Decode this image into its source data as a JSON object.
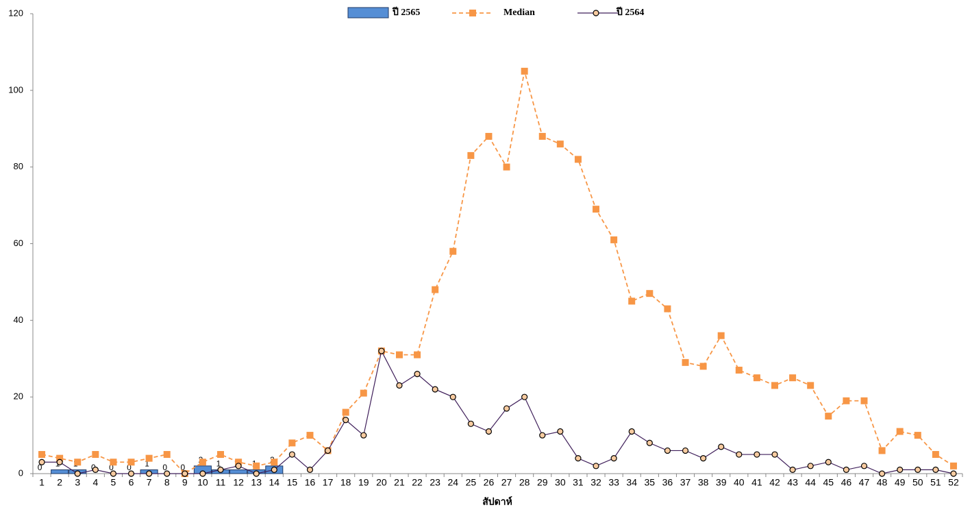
{
  "chart_data": {
    "type": "combo",
    "x_label": "สัปดาห์",
    "categories": [
      "1",
      "2",
      "3",
      "4",
      "5",
      "6",
      "7",
      "8",
      "9",
      "10",
      "11",
      "12",
      "13",
      "14",
      "15",
      "16",
      "17",
      "18",
      "19",
      "20",
      "21",
      "22",
      "23",
      "24",
      "25",
      "26",
      "27",
      "28",
      "29",
      "30",
      "31",
      "32",
      "33",
      "34",
      "35",
      "36",
      "37",
      "38",
      "39",
      "40",
      "41",
      "42",
      "43",
      "44",
      "45",
      "46",
      "47",
      "48",
      "49",
      "50",
      "51",
      "52"
    ],
    "ylim": [
      0,
      120
    ],
    "yticks": [
      0,
      20,
      40,
      60,
      80,
      100,
      120
    ],
    "series": [
      {
        "name": "ปี 2565",
        "type": "bar",
        "color": "#558ed5",
        "border": "#1f3864",
        "values": [
          0,
          1,
          1,
          0,
          0,
          0,
          1,
          0,
          0,
          2,
          1,
          1,
          1,
          2,
          null,
          null,
          null,
          null,
          null,
          null,
          null,
          null,
          null,
          null,
          null,
          null,
          null,
          null,
          null,
          null,
          null,
          null,
          null,
          null,
          null,
          null,
          null,
          null,
          null,
          null,
          null,
          null,
          null,
          null,
          null,
          null,
          null,
          null,
          null,
          null,
          null,
          null
        ]
      },
      {
        "name": "Median",
        "type": "line",
        "color": "#f79646",
        "dashed": true,
        "marker": "square",
        "marker_fill": "#f79646",
        "values": [
          5,
          4,
          3,
          5,
          3,
          3,
          4,
          5,
          0,
          3,
          5,
          3,
          2,
          3,
          8,
          10,
          6,
          16,
          21,
          32,
          31,
          31,
          48,
          58,
          83,
          88,
          80,
          105,
          88,
          86,
          82,
          69,
          61,
          45,
          47,
          43,
          29,
          28,
          36,
          27,
          25,
          23,
          25,
          23,
          15,
          19,
          19,
          6,
          11,
          10,
          5,
          2
        ]
      },
      {
        "name": "ปี 2564",
        "type": "line",
        "color": "#3f1f5a",
        "dashed": false,
        "marker": "circle",
        "marker_fill": "#f8cba0",
        "values": [
          3,
          3,
          0,
          1,
          0,
          0,
          0,
          0,
          0,
          0,
          1,
          2,
          0,
          1,
          5,
          1,
          6,
          14,
          10,
          32,
          23,
          26,
          22,
          20,
          13,
          11,
          17,
          20,
          10,
          11,
          4,
          2,
          4,
          11,
          8,
          6,
          6,
          4,
          7,
          5,
          5,
          5,
          1,
          2,
          3,
          1,
          2,
          0,
          1,
          1,
          1,
          0
        ]
      }
    ]
  }
}
